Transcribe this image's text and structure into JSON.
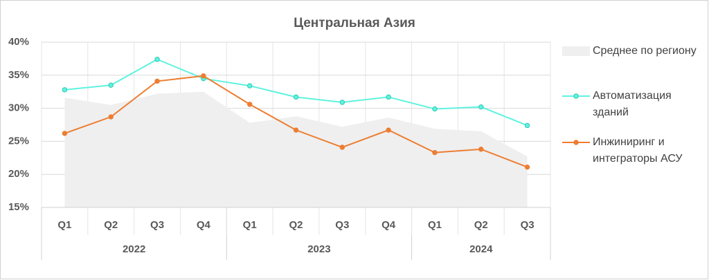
{
  "chart_data": {
    "type": "line",
    "title": "Центральная Азия",
    "category_groups": [
      {
        "name": "2022",
        "categories": [
          "Q1",
          "Q2",
          "Q3",
          "Q4"
        ]
      },
      {
        "name": "2023",
        "categories": [
          "Q1",
          "Q2",
          "Q3",
          "Q4"
        ]
      },
      {
        "name": "2024",
        "categories": [
          "Q1",
          "Q2",
          "Q3"
        ]
      }
    ],
    "series": [
      {
        "name": "Среднее по региону",
        "style": "area",
        "color": "#efefef",
        "values": [
          31.6,
          30.5,
          32.2,
          32.5,
          27.8,
          28.8,
          27.2,
          28.6,
          26.9,
          26.5,
          22.7
        ]
      },
      {
        "name": "Автоматизация зданий",
        "style": "line",
        "color": "#5ff2df",
        "marker": true,
        "values": [
          32.8,
          33.5,
          37.4,
          34.5,
          33.4,
          31.7,
          30.9,
          31.7,
          29.9,
          30.2,
          27.4
        ]
      },
      {
        "name": "Инжиниринг и интеграторы АСУ",
        "style": "line",
        "color": "#ed7d31",
        "marker": true,
        "values": [
          26.2,
          28.7,
          34.1,
          34.9,
          30.6,
          26.7,
          24.1,
          26.7,
          23.3,
          23.8,
          21.1
        ]
      }
    ],
    "ylim": [
      15,
      40
    ],
    "yticks": [
      {
        "value": 15,
        "label": "15%"
      },
      {
        "value": 20,
        "label": "20%"
      },
      {
        "value": 25,
        "label": "25%"
      },
      {
        "value": 30,
        "label": "30%"
      },
      {
        "value": 35,
        "label": "35%"
      },
      {
        "value": 40,
        "label": "40%"
      }
    ],
    "grid": true,
    "legend": "right"
  }
}
